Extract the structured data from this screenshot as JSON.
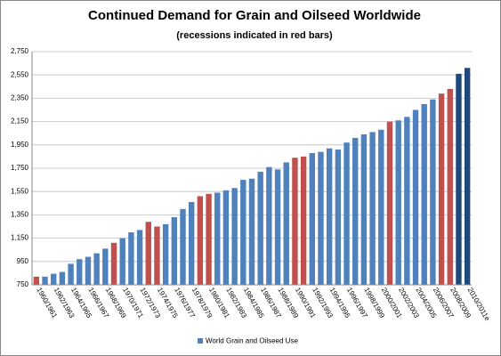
{
  "chart_data": {
    "type": "bar",
    "title": "Continued Demand for Grain and Oilseed Worldwide",
    "subtitle": "(recessions indicated in red bars)",
    "categories": [
      "1960/1961",
      null,
      "1962/1963",
      null,
      "1964/1965",
      null,
      "1966/1967",
      null,
      "1968/1969",
      null,
      "1970/1971",
      null,
      "1972/1973",
      null,
      "1974/1975",
      null,
      "1976/1977",
      null,
      "1978/1979",
      null,
      "1980/1981",
      null,
      "1982/1983",
      null,
      "1984/1985",
      null,
      "1986/1987",
      null,
      "1988/1989",
      null,
      "1990/1991",
      null,
      "1992/1993",
      null,
      "1994/1995",
      null,
      "1996/1997",
      null,
      "1998/1999",
      null,
      "2000/2001",
      null,
      "2002/2003",
      null,
      "2004/2005",
      null,
      "2006/2007",
      null,
      "2008/2009",
      null,
      "2010/2011e"
    ],
    "series": [
      {
        "name": "World Grain and Oilseed Use",
        "color": "#4f81bd",
        "values": [
          820,
          820,
          845,
          860,
          930,
          970,
          990,
          1020,
          1060,
          1110,
          1150,
          1200,
          1220,
          1290,
          1250,
          1270,
          1330,
          1400,
          1460,
          1510,
          1530,
          1540,
          1560,
          1580,
          1650,
          1660,
          1720,
          1760,
          1740,
          1800,
          1840,
          1850,
          1880,
          1890,
          1920,
          1910,
          1970,
          2010,
          2040,
          2060,
          2080,
          2150,
          2160,
          2190,
          2250,
          2300,
          2340,
          2390,
          2430,
          2560,
          2610
        ],
        "bar_colors": [
          "#c0504d",
          "#4f81bd",
          "#4f81bd",
          "#4f81bd",
          "#4f81bd",
          "#4f81bd",
          "#4f81bd",
          "#4f81bd",
          "#4f81bd",
          "#c0504d",
          "#4f81bd",
          "#4f81bd",
          "#4f81bd",
          "#c0504d",
          "#c0504d",
          "#4f81bd",
          "#4f81bd",
          "#4f81bd",
          "#4f81bd",
          "#c0504d",
          "#c0504d",
          "#4f81bd",
          "#4f81bd",
          "#4f81bd",
          "#4f81bd",
          "#4f81bd",
          "#4f81bd",
          "#4f81bd",
          "#4f81bd",
          "#4f81bd",
          "#c0504d",
          "#c0504d",
          "#4f81bd",
          "#4f81bd",
          "#4f81bd",
          "#4f81bd",
          "#4f81bd",
          "#4f81bd",
          "#4f81bd",
          "#4f81bd",
          "#4f81bd",
          "#c0504d",
          "#4f81bd",
          "#4f81bd",
          "#4f81bd",
          "#4f81bd",
          "#4f81bd",
          "#c0504d",
          "#c0504d",
          "#1f497d",
          "#1f497d"
        ]
      }
    ],
    "ylim": [
      750,
      2750
    ],
    "yticks": [
      750,
      950,
      {
        "value": 1150,
        "label": "1,150"
      },
      {
        "value": 1350,
        "label": "1,350"
      },
      {
        "value": 1550,
        "label": "1,550"
      },
      {
        "value": 1750,
        "label": "1,750"
      },
      {
        "value": 1950,
        "label": "1,950"
      },
      {
        "value": 2150,
        "label": "2,150"
      },
      {
        "value": 2350,
        "label": "2,350"
      },
      {
        "value": 2550,
        "label": "2,550"
      },
      {
        "value": 2750,
        "label": "2,750"
      }
    ],
    "grid": true,
    "legend": "bottom"
  }
}
